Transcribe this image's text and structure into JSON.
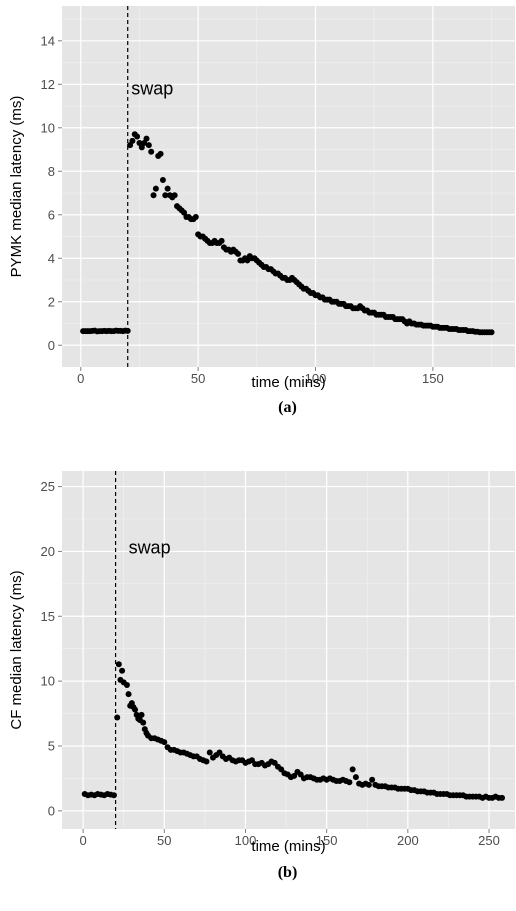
{
  "chart_data": [
    {
      "type": "scatter",
      "caption": "(a)",
      "xlabel": "time (mins)",
      "ylabel": "PYMK median latency (ms)",
      "xlim": [
        -8,
        185
      ],
      "ylim": [
        -1,
        15.6
      ],
      "xticks": [
        0,
        50,
        100,
        150
      ],
      "yticks": [
        0,
        2,
        4,
        6,
        8,
        10,
        12,
        14
      ],
      "grid": true,
      "background": "#e5e5e5",
      "point_color": "#000000",
      "vline": {
        "x": 20,
        "style": "dashed",
        "label": "swap",
        "label_x": 21.5,
        "label_y": 11.8
      },
      "points": [
        [
          1,
          0.65
        ],
        [
          2,
          0.65
        ],
        [
          3,
          0.65
        ],
        [
          4,
          0.65
        ],
        [
          5,
          0.66
        ],
        [
          6,
          0.67
        ],
        [
          7,
          0.64
        ],
        [
          8,
          0.65
        ],
        [
          9,
          0.65
        ],
        [
          10,
          0.66
        ],
        [
          11,
          0.65
        ],
        [
          12,
          0.66
        ],
        [
          13,
          0.65
        ],
        [
          14,
          0.65
        ],
        [
          15,
          0.67
        ],
        [
          16,
          0.66
        ],
        [
          17,
          0.66
        ],
        [
          18,
          0.65
        ],
        [
          19,
          0.67
        ],
        [
          20,
          0.66
        ],
        [
          21,
          9.2
        ],
        [
          22,
          9.4
        ],
        [
          23,
          9.7
        ],
        [
          24,
          9.6
        ],
        [
          25,
          9.3
        ],
        [
          26,
          9.1
        ],
        [
          27,
          9.3
        ],
        [
          28,
          9.5
        ],
        [
          29,
          9.2
        ],
        [
          30,
          8.9
        ],
        [
          31,
          6.9
        ],
        [
          32,
          7.2
        ],
        [
          33,
          8.7
        ],
        [
          34,
          8.8
        ],
        [
          35,
          7.6
        ],
        [
          36,
          6.9
        ],
        [
          37,
          7.2
        ],
        [
          38,
          6.9
        ],
        [
          39,
          6.8
        ],
        [
          40,
          6.9
        ],
        [
          41,
          6.4
        ],
        [
          42,
          6.3
        ],
        [
          43,
          6.2
        ],
        [
          44,
          6.1
        ],
        [
          45,
          5.9
        ],
        [
          46,
          5.9
        ],
        [
          47,
          5.8
        ],
        [
          48,
          5.8
        ],
        [
          49,
          5.9
        ],
        [
          50,
          5.1
        ],
        [
          51,
          5.0
        ],
        [
          52,
          5.0
        ],
        [
          53,
          4.9
        ],
        [
          54,
          4.8
        ],
        [
          55,
          4.7
        ],
        [
          56,
          4.7
        ],
        [
          57,
          4.8
        ],
        [
          58,
          4.7
        ],
        [
          59,
          4.7
        ],
        [
          60,
          4.8
        ],
        [
          61,
          4.5
        ],
        [
          62,
          4.4
        ],
        [
          63,
          4.4
        ],
        [
          64,
          4.3
        ],
        [
          65,
          4.4
        ],
        [
          66,
          4.3
        ],
        [
          67,
          4.2
        ],
        [
          68,
          3.9
        ],
        [
          69,
          3.9
        ],
        [
          70,
          4.0
        ],
        [
          71,
          3.9
        ],
        [
          72,
          4.1
        ],
        [
          73,
          4.0
        ],
        [
          74,
          4.0
        ],
        [
          75,
          3.9
        ],
        [
          76,
          3.8
        ],
        [
          77,
          3.7
        ],
        [
          78,
          3.6
        ],
        [
          79,
          3.6
        ],
        [
          80,
          3.5
        ],
        [
          81,
          3.5
        ],
        [
          82,
          3.4
        ],
        [
          83,
          3.3
        ],
        [
          84,
          3.3
        ],
        [
          85,
          3.2
        ],
        [
          86,
          3.1
        ],
        [
          87,
          3.1
        ],
        [
          88,
          3.0
        ],
        [
          89,
          3.0
        ],
        [
          90,
          3.1
        ],
        [
          91,
          3.0
        ],
        [
          92,
          2.9
        ],
        [
          93,
          2.8
        ],
        [
          94,
          2.7
        ],
        [
          95,
          2.6
        ],
        [
          96,
          2.6
        ],
        [
          97,
          2.5
        ],
        [
          98,
          2.4
        ],
        [
          99,
          2.4
        ],
        [
          100,
          2.3
        ],
        [
          101,
          2.3
        ],
        [
          102,
          2.2
        ],
        [
          103,
          2.2
        ],
        [
          104,
          2.1
        ],
        [
          105,
          2.1
        ],
        [
          106,
          2.1
        ],
        [
          107,
          2.0
        ],
        [
          108,
          2.0
        ],
        [
          109,
          2.0
        ],
        [
          110,
          1.9
        ],
        [
          111,
          1.9
        ],
        [
          112,
          1.9
        ],
        [
          113,
          1.8
        ],
        [
          114,
          1.8
        ],
        [
          115,
          1.8
        ],
        [
          116,
          1.7
        ],
        [
          117,
          1.7
        ],
        [
          118,
          1.7
        ],
        [
          119,
          1.8
        ],
        [
          120,
          1.7
        ],
        [
          121,
          1.6
        ],
        [
          122,
          1.6
        ],
        [
          123,
          1.5
        ],
        [
          124,
          1.5
        ],
        [
          125,
          1.5
        ],
        [
          126,
          1.4
        ],
        [
          127,
          1.4
        ],
        [
          128,
          1.4
        ],
        [
          129,
          1.4
        ],
        [
          130,
          1.3
        ],
        [
          131,
          1.3
        ],
        [
          132,
          1.3
        ],
        [
          133,
          1.3
        ],
        [
          134,
          1.2
        ],
        [
          135,
          1.2
        ],
        [
          136,
          1.2
        ],
        [
          137,
          1.2
        ],
        [
          138,
          1.1
        ],
        [
          139,
          1.0
        ],
        [
          140,
          1.1
        ],
        [
          141,
          1.0
        ],
        [
          142,
          1.0
        ],
        [
          143,
          0.95
        ],
        [
          144,
          0.95
        ],
        [
          145,
          0.95
        ],
        [
          146,
          0.9
        ],
        [
          147,
          0.9
        ],
        [
          148,
          0.9
        ],
        [
          149,
          0.9
        ],
        [
          150,
          0.85
        ],
        [
          151,
          0.85
        ],
        [
          152,
          0.85
        ],
        [
          153,
          0.8
        ],
        [
          154,
          0.8
        ],
        [
          155,
          0.8
        ],
        [
          156,
          0.8
        ],
        [
          157,
          0.75
        ],
        [
          158,
          0.75
        ],
        [
          159,
          0.75
        ],
        [
          160,
          0.75
        ],
        [
          161,
          0.7
        ],
        [
          162,
          0.7
        ],
        [
          163,
          0.7
        ],
        [
          164,
          0.7
        ],
        [
          165,
          0.65
        ],
        [
          166,
          0.65
        ],
        [
          167,
          0.65
        ],
        [
          168,
          0.62
        ],
        [
          169,
          0.62
        ],
        [
          170,
          0.6
        ],
        [
          171,
          0.6
        ],
        [
          172,
          0.6
        ],
        [
          173,
          0.6
        ],
        [
          174,
          0.6
        ],
        [
          175,
          0.6
        ]
      ]
    },
    {
      "type": "scatter",
      "caption": "(b)",
      "xlabel": "time (mins)",
      "ylabel": "CF median latency (ms)",
      "xlim": [
        -13,
        266
      ],
      "ylim": [
        -1.4,
        26.2
      ],
      "xticks": [
        0,
        50,
        100,
        150,
        200,
        250
      ],
      "yticks": [
        0,
        5,
        10,
        15,
        20,
        25
      ],
      "grid": true,
      "background": "#e5e5e5",
      "point_color": "#000000",
      "vline": {
        "x": 20,
        "style": "dashed",
        "label": "swap",
        "label_x": 28,
        "label_y": 20.3
      },
      "points": [
        [
          1,
          1.3
        ],
        [
          3,
          1.2
        ],
        [
          5,
          1.25
        ],
        [
          7,
          1.2
        ],
        [
          9,
          1.3
        ],
        [
          11,
          1.25
        ],
        [
          13,
          1.2
        ],
        [
          15,
          1.3
        ],
        [
          17,
          1.25
        ],
        [
          19,
          1.2
        ],
        [
          21,
          7.2
        ],
        [
          22,
          11.3
        ],
        [
          23,
          10.1
        ],
        [
          24,
          10.8
        ],
        [
          25,
          9.9
        ],
        [
          27,
          9.7
        ],
        [
          28,
          9.0
        ],
        [
          29,
          8.1
        ],
        [
          30,
          8.3
        ],
        [
          31,
          8.0
        ],
        [
          32,
          7.8
        ],
        [
          33,
          7.4
        ],
        [
          34,
          7.1
        ],
        [
          35,
          7.0
        ],
        [
          36,
          7.4
        ],
        [
          37,
          6.8
        ],
        [
          38,
          6.3
        ],
        [
          39,
          6.0
        ],
        [
          40,
          5.8
        ],
        [
          42,
          5.6
        ],
        [
          44,
          5.6
        ],
        [
          46,
          5.5
        ],
        [
          48,
          5.4
        ],
        [
          50,
          5.3
        ],
        [
          52,
          4.9
        ],
        [
          54,
          4.7
        ],
        [
          56,
          4.7
        ],
        [
          58,
          4.6
        ],
        [
          60,
          4.5
        ],
        [
          62,
          4.5
        ],
        [
          64,
          4.4
        ],
        [
          66,
          4.3
        ],
        [
          68,
          4.2
        ],
        [
          70,
          4.2
        ],
        [
          72,
          4.0
        ],
        [
          74,
          3.9
        ],
        [
          76,
          3.8
        ],
        [
          78,
          4.5
        ],
        [
          80,
          4.1
        ],
        [
          82,
          4.3
        ],
        [
          84,
          4.5
        ],
        [
          86,
          4.2
        ],
        [
          88,
          4.0
        ],
        [
          90,
          4.1
        ],
        [
          92,
          3.9
        ],
        [
          94,
          3.8
        ],
        [
          96,
          3.9
        ],
        [
          98,
          3.9
        ],
        [
          100,
          3.7
        ],
        [
          102,
          3.8
        ],
        [
          104,
          3.9
        ],
        [
          106,
          3.6
        ],
        [
          108,
          3.6
        ],
        [
          110,
          3.7
        ],
        [
          112,
          3.5
        ],
        [
          114,
          3.6
        ],
        [
          116,
          3.8
        ],
        [
          118,
          3.7
        ],
        [
          120,
          3.4
        ],
        [
          122,
          3.2
        ],
        [
          124,
          2.9
        ],
        [
          126,
          2.8
        ],
        [
          128,
          2.6
        ],
        [
          130,
          2.7
        ],
        [
          132,
          3.0
        ],
        [
          134,
          2.8
        ],
        [
          136,
          2.5
        ],
        [
          138,
          2.6
        ],
        [
          140,
          2.6
        ],
        [
          142,
          2.5
        ],
        [
          144,
          2.4
        ],
        [
          146,
          2.4
        ],
        [
          148,
          2.5
        ],
        [
          150,
          2.4
        ],
        [
          152,
          2.5
        ],
        [
          154,
          2.4
        ],
        [
          156,
          2.3
        ],
        [
          158,
          2.3
        ],
        [
          160,
          2.4
        ],
        [
          162,
          2.3
        ],
        [
          164,
          2.2
        ],
        [
          166,
          3.2
        ],
        [
          168,
          2.6
        ],
        [
          170,
          2.1
        ],
        [
          172,
          2.0
        ],
        [
          174,
          2.1
        ],
        [
          176,
          2.0
        ],
        [
          178,
          2.4
        ],
        [
          180,
          2.0
        ],
        [
          182,
          1.9
        ],
        [
          184,
          1.9
        ],
        [
          186,
          1.9
        ],
        [
          188,
          1.8
        ],
        [
          190,
          1.8
        ],
        [
          192,
          1.8
        ],
        [
          194,
          1.7
        ],
        [
          196,
          1.7
        ],
        [
          198,
          1.7
        ],
        [
          200,
          1.7
        ],
        [
          202,
          1.6
        ],
        [
          204,
          1.6
        ],
        [
          206,
          1.5
        ],
        [
          208,
          1.5
        ],
        [
          210,
          1.5
        ],
        [
          212,
          1.4
        ],
        [
          214,
          1.4
        ],
        [
          216,
          1.4
        ],
        [
          218,
          1.3
        ],
        [
          220,
          1.3
        ],
        [
          222,
          1.3
        ],
        [
          224,
          1.3
        ],
        [
          226,
          1.2
        ],
        [
          228,
          1.2
        ],
        [
          230,
          1.2
        ],
        [
          232,
          1.2
        ],
        [
          234,
          1.2
        ],
        [
          236,
          1.1
        ],
        [
          238,
          1.1
        ],
        [
          240,
          1.1
        ],
        [
          242,
          1.1
        ],
        [
          244,
          1.1
        ],
        [
          246,
          1.0
        ],
        [
          248,
          1.1
        ],
        [
          250,
          1.0
        ],
        [
          252,
          1.0
        ],
        [
          254,
          1.1
        ],
        [
          256,
          1.0
        ],
        [
          258,
          1.0
        ]
      ]
    }
  ]
}
